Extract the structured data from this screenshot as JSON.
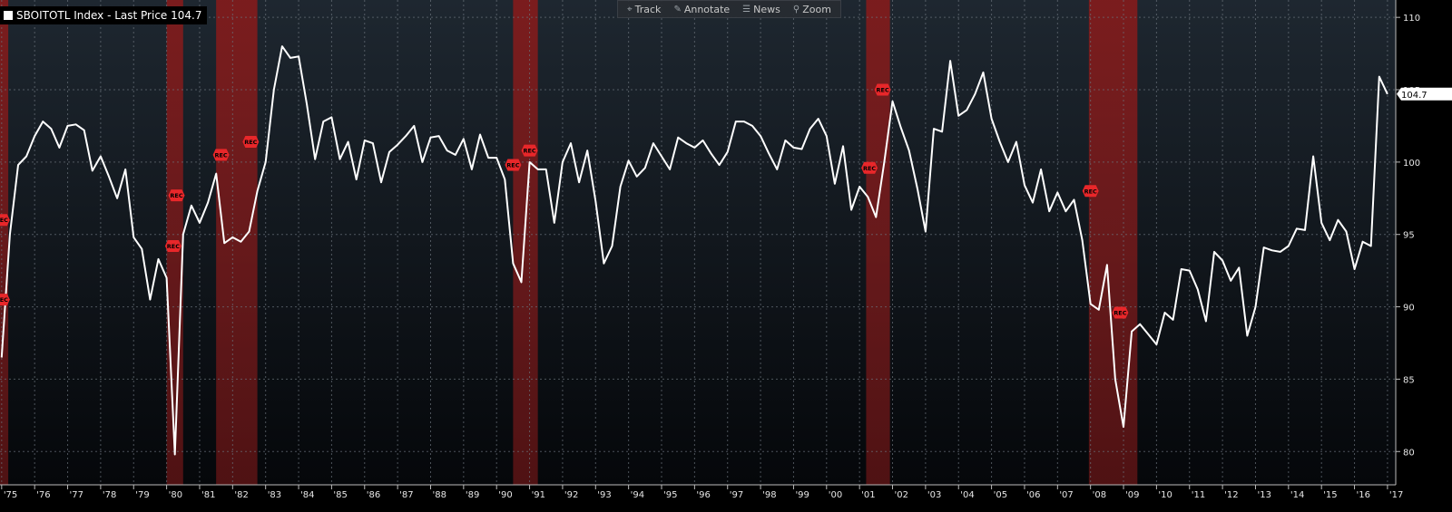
{
  "legend": {
    "label": "SBOITOTL Index - Last Price 104.7",
    "color": "#ffffff"
  },
  "toolbar": {
    "track": "Track",
    "annotate": "Annotate",
    "news": "News",
    "zoom": "Zoom"
  },
  "colors": {
    "background_top": "#1e2730",
    "background_bottom": "#05070a",
    "line": "#ffffff",
    "recession_band": "#8b1a1a",
    "rec_marker": "#e8272a",
    "grid": "#6b737c"
  },
  "chart_data": {
    "type": "line",
    "series": [
      {
        "name": "SBOITOTL Index",
        "x": [
          1975.0,
          1975.25,
          1975.5,
          1975.75,
          1976.0,
          1976.25,
          1976.5,
          1976.75,
          1977.0,
          1977.25,
          1977.5,
          1977.75,
          1978.0,
          1978.25,
          1978.5,
          1978.75,
          1979.0,
          1979.25,
          1979.5,
          1979.75,
          1980.0,
          1980.25,
          1980.5,
          1980.75,
          1981.0,
          1981.25,
          1981.5,
          1981.75,
          1982.0,
          1982.25,
          1982.5,
          1982.75,
          1983.0,
          1983.25,
          1983.5,
          1983.75,
          1984.0,
          1984.25,
          1984.5,
          1984.75,
          1985.0,
          1985.25,
          1985.5,
          1985.75,
          1986.0,
          1986.25,
          1986.5,
          1986.75,
          1987.0,
          1987.25,
          1987.5,
          1987.75,
          1988.0,
          1988.25,
          1988.5,
          1988.75,
          1989.0,
          1989.25,
          1989.5,
          1989.75,
          1990.0,
          1990.25,
          1990.5,
          1990.75,
          1991.0,
          1991.25,
          1991.5,
          1991.75,
          1992.0,
          1992.25,
          1992.5,
          1992.75,
          1993.0,
          1993.25,
          1993.5,
          1993.75,
          1994.0,
          1994.25,
          1994.5,
          1994.75,
          1995.0,
          1995.25,
          1995.5,
          1995.75,
          1996.0,
          1996.25,
          1996.5,
          1996.75,
          1997.0,
          1997.25,
          1997.5,
          1997.75,
          1998.0,
          1998.25,
          1998.5,
          1998.75,
          1999.0,
          1999.25,
          1999.5,
          1999.75,
          2000.0,
          2000.25,
          2000.5,
          2000.75,
          2001.0,
          2001.25,
          2001.5,
          2001.75,
          2002.0,
          2002.25,
          2002.5,
          2002.75,
          2003.0,
          2003.25,
          2003.5,
          2003.75,
          2004.0,
          2004.25,
          2004.5,
          2004.75,
          2005.0,
          2005.25,
          2005.5,
          2005.75,
          2006.0,
          2006.25,
          2006.5,
          2006.75,
          2007.0,
          2007.25,
          2007.5,
          2007.75,
          2008.0,
          2008.25,
          2008.5,
          2008.75,
          2009.0,
          2009.25,
          2009.5,
          2009.75,
          2010.0,
          2010.25,
          2010.5,
          2010.75,
          2011.0,
          2011.25,
          2011.5,
          2011.75,
          2012.0,
          2012.25,
          2012.5,
          2012.75,
          2013.0,
          2013.25,
          2013.5,
          2013.75,
          2014.0,
          2014.25,
          2014.5,
          2014.75,
          2015.0,
          2015.25,
          2015.5,
          2015.75,
          2016.0,
          2016.25,
          2016.5,
          2016.75,
          2017.0
        ],
        "values": [
          86.5,
          95.0,
          99.8,
          100.4,
          101.8,
          102.8,
          102.3,
          101.0,
          102.5,
          102.6,
          102.2,
          99.4,
          100.4,
          99.0,
          97.5,
          99.5,
          94.8,
          94.0,
          90.5,
          93.3,
          92.0,
          79.8,
          95.0,
          97.0,
          95.8,
          97.2,
          99.2,
          94.4,
          94.8,
          94.5,
          95.2,
          98.0,
          100.0,
          105.0,
          108.0,
          107.2,
          107.3,
          104.0,
          100.2,
          102.8,
          103.1,
          100.2,
          101.4,
          98.8,
          101.5,
          101.3,
          98.6,
          100.7,
          101.2,
          101.8,
          102.5,
          100.0,
          101.7,
          101.8,
          100.8,
          100.5,
          101.6,
          99.5,
          101.9,
          100.3,
          100.3,
          98.8,
          93.0,
          91.7,
          100.0,
          99.5,
          99.5,
          95.8,
          100.0,
          101.3,
          98.6,
          100.8,
          97.3,
          93.0,
          94.2,
          98.3,
          100.1,
          99.0,
          99.6,
          101.3,
          100.4,
          99.5,
          101.7,
          101.3,
          101.0,
          101.5,
          100.6,
          99.8,
          100.7,
          102.8,
          102.8,
          102.5,
          101.8,
          100.6,
          99.5,
          101.5,
          101.0,
          100.9,
          102.3,
          103.0,
          101.8,
          98.5,
          101.1,
          96.7,
          98.3,
          97.6,
          96.2,
          100.0,
          104.2,
          102.4,
          100.8,
          98.2,
          95.2,
          102.3,
          102.1,
          107.0,
          103.2,
          103.6,
          104.7,
          106.2,
          103.0,
          101.4,
          100.0,
          101.4,
          98.4,
          97.2,
          99.5,
          96.6,
          97.9,
          96.6,
          97.4,
          94.6,
          90.2,
          89.8,
          92.9,
          85.0,
          81.7,
          88.3,
          88.8,
          88.1,
          87.4,
          89.6,
          89.1,
          92.6,
          92.5,
          91.2,
          89.0,
          93.8,
          93.2,
          91.8,
          92.7,
          88.0,
          90.0,
          94.1,
          93.9,
          93.8,
          94.2,
          95.4,
          95.3,
          100.4,
          95.8,
          94.6,
          96.0,
          95.2,
          92.6,
          94.5,
          94.2,
          105.9,
          104.7
        ],
        "color": "#ffffff"
      }
    ],
    "recessions": [
      {
        "start": 1974.95,
        "end": 1975.2
      },
      {
        "start": 1980.0,
        "end": 1980.5
      },
      {
        "start": 1981.5,
        "end": 1982.75
      },
      {
        "start": 1990.5,
        "end": 1991.25
      },
      {
        "start": 2001.2,
        "end": 2001.92
      },
      {
        "start": 2007.95,
        "end": 2009.42
      }
    ],
    "rec_markers": [
      {
        "x": 1975.0,
        "y": 90.5,
        "label": "REC"
      },
      {
        "x": 1975.0,
        "y": 96.0,
        "label": "REC"
      },
      {
        "x": 1980.2,
        "y": 94.2,
        "label": "REC"
      },
      {
        "x": 1980.3,
        "y": 97.7,
        "label": "REC"
      },
      {
        "x": 1981.65,
        "y": 100.5,
        "label": "REC"
      },
      {
        "x": 1982.55,
        "y": 101.4,
        "label": "REC"
      },
      {
        "x": 1990.5,
        "y": 99.8,
        "label": "REC"
      },
      {
        "x": 1991.0,
        "y": 100.8,
        "label": "REC"
      },
      {
        "x": 2001.3,
        "y": 99.6,
        "label": "REC"
      },
      {
        "x": 2001.7,
        "y": 105.0,
        "label": "REC"
      },
      {
        "x": 2008.0,
        "y": 98.0,
        "label": "REC"
      },
      {
        "x": 2008.9,
        "y": 89.6,
        "label": "REC"
      }
    ],
    "last_value_label": "104.7",
    "xlim": [
      1974.95,
      2017.25
    ],
    "ylim": [
      77.7,
      111.2
    ],
    "yticks": [
      80,
      85,
      90,
      95,
      100,
      105,
      110
    ],
    "xticks": [
      {
        "x": 1975,
        "label": "'75"
      },
      {
        "x": 1976,
        "label": "'76"
      },
      {
        "x": 1977,
        "label": "'77"
      },
      {
        "x": 1978,
        "label": "'78"
      },
      {
        "x": 1979,
        "label": "'79"
      },
      {
        "x": 1980,
        "label": "'80"
      },
      {
        "x": 1981,
        "label": "'81"
      },
      {
        "x": 1982,
        "label": "'82"
      },
      {
        "x": 1983,
        "label": "'83"
      },
      {
        "x": 1984,
        "label": "'84"
      },
      {
        "x": 1985,
        "label": "'85"
      },
      {
        "x": 1986,
        "label": "'86"
      },
      {
        "x": 1987,
        "label": "'87"
      },
      {
        "x": 1988,
        "label": "'88"
      },
      {
        "x": 1989,
        "label": "'89"
      },
      {
        "x": 1990,
        "label": "'90"
      },
      {
        "x": 1991,
        "label": "'91"
      },
      {
        "x": 1992,
        "label": "'92"
      },
      {
        "x": 1993,
        "label": "'93"
      },
      {
        "x": 1994,
        "label": "'94"
      },
      {
        "x": 1995,
        "label": "'95"
      },
      {
        "x": 1996,
        "label": "'96"
      },
      {
        "x": 1997,
        "label": "'97"
      },
      {
        "x": 1998,
        "label": "'98"
      },
      {
        "x": 1999,
        "label": "'99"
      },
      {
        "x": 2000,
        "label": "'00"
      },
      {
        "x": 2001,
        "label": "'01"
      },
      {
        "x": 2002,
        "label": "'02"
      },
      {
        "x": 2003,
        "label": "'03"
      },
      {
        "x": 2004,
        "label": "'04"
      },
      {
        "x": 2005,
        "label": "'05"
      },
      {
        "x": 2006,
        "label": "'06"
      },
      {
        "x": 2007,
        "label": "'07"
      },
      {
        "x": 2008,
        "label": "'08"
      },
      {
        "x": 2009,
        "label": "'09"
      },
      {
        "x": 2010,
        "label": "'10"
      },
      {
        "x": 2011,
        "label": "'11"
      },
      {
        "x": 2012,
        "label": "'12"
      },
      {
        "x": 2013,
        "label": "'13"
      },
      {
        "x": 2014,
        "label": "'14"
      },
      {
        "x": 2015,
        "label": "'15"
      },
      {
        "x": 2016,
        "label": "'16"
      },
      {
        "x": 2017,
        "label": "'17"
      }
    ],
    "grid": true,
    "legend_position": "top-left",
    "y_axis_side": "right"
  }
}
